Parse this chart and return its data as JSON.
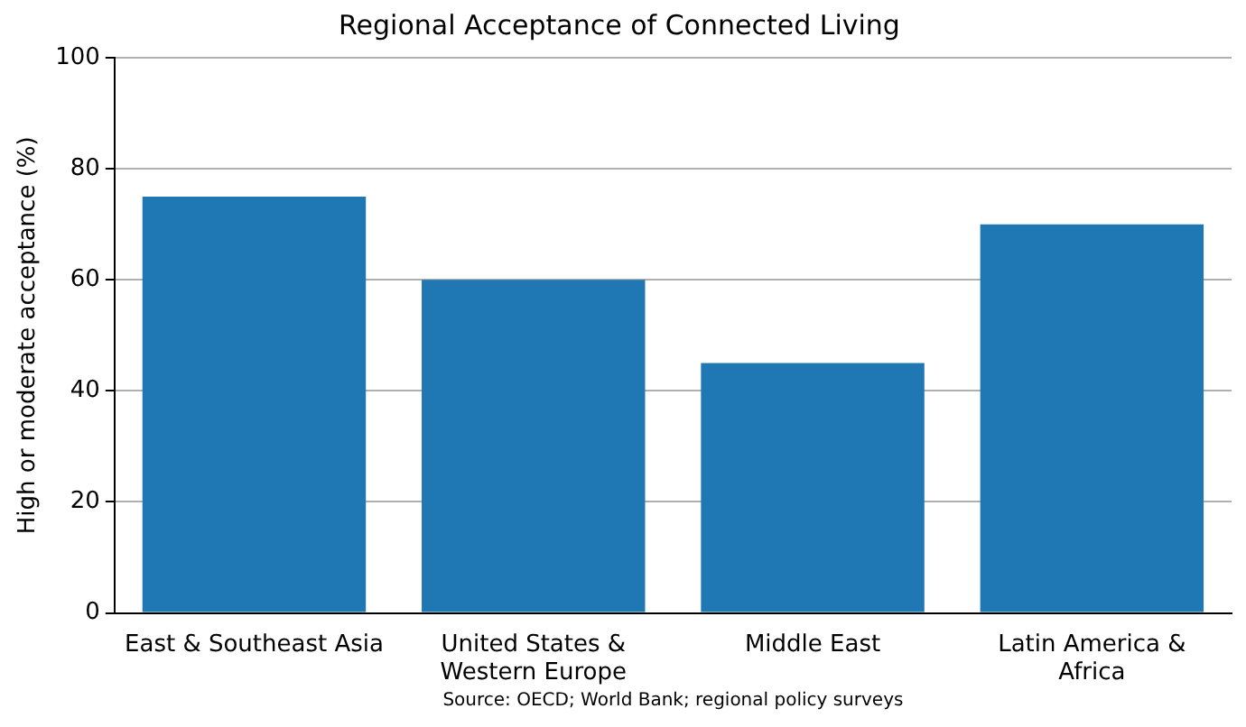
{
  "chart_data": {
    "type": "bar",
    "title": "Regional Acceptance of Connected Living",
    "ylabel": "High or moderate acceptance (%)",
    "categories": [
      "East & Southeast Asia",
      "United States & Western Europe",
      "Middle East",
      "Latin America & Africa"
    ],
    "values": [
      75,
      60,
      45,
      70
    ],
    "color": "#1f77b4",
    "ylim": [
      0,
      100
    ],
    "yticks": [
      0,
      20,
      40,
      60,
      80,
      100
    ],
    "grid": "y",
    "annotations": [
      "Source: OECD; World Bank; regional policy surveys"
    ]
  }
}
